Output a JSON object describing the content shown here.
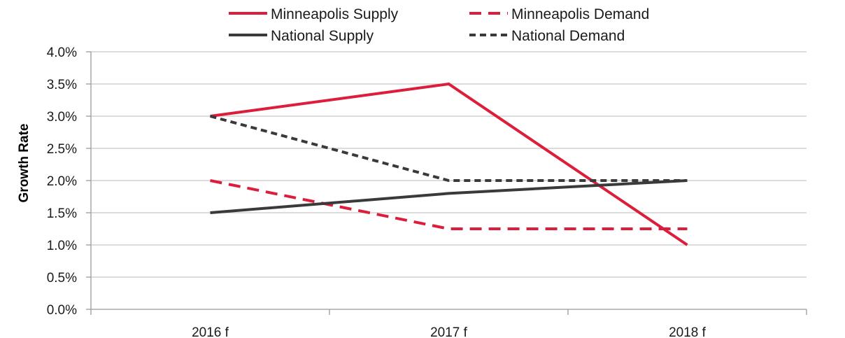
{
  "chart_data": {
    "type": "line",
    "title": "",
    "xlabel": "",
    "ylabel": "Growth Rate",
    "categories": [
      "2016 f",
      "2017 f",
      "2018 f"
    ],
    "yticks": [
      "0.0%",
      "0.5%",
      "1.0%",
      "1.5%",
      "2.0%",
      "2.5%",
      "3.0%",
      "3.5%",
      "4.0%"
    ],
    "ylim": [
      0,
      4.0
    ],
    "unit": "%",
    "grid": true,
    "legend_position": "top",
    "series": [
      {
        "name": "Minneapolis Supply",
        "values": [
          3.0,
          3.5,
          1.0
        ],
        "color": "#dc1e3c",
        "style": "solid"
      },
      {
        "name": "Minneapolis Demand",
        "values": [
          2.0,
          1.25,
          1.25
        ],
        "color": "#dc1e3c",
        "style": "dashed"
      },
      {
        "name": "National Supply",
        "values": [
          1.5,
          1.8,
          2.0
        ],
        "color": "#3a3a3a",
        "style": "solid"
      },
      {
        "name": "National Demand",
        "values": [
          3.0,
          2.0,
          2.0
        ],
        "color": "#3a3a3a",
        "style": "dotted"
      }
    ]
  }
}
